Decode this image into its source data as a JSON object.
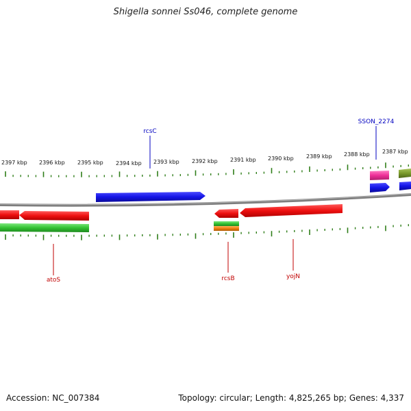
{
  "title": "Shigella sonnei Ss046, complete genome",
  "footer": {
    "accession": "Accession: NC_007384",
    "summary": "Topology: circular; Length: 4,825,265 bp; Genes: 4,337"
  },
  "colors": {
    "backbone": "#8a8a8a",
    "tick": "#2e7d18",
    "blue": "#1414e6",
    "red": "#ee1010",
    "green": "#33c233",
    "magenta": "#ee2f98",
    "olive": "#7a9a2a",
    "orange": "#f07f10",
    "label_red": "#c00000",
    "label_blue": "#0000c0"
  },
  "scale_labels": [
    {
      "label": "2397 kbp",
      "kbp": 2397
    },
    {
      "label": "2396 kbp",
      "kbp": 2396
    },
    {
      "label": "2395 kbp",
      "kbp": 2395
    },
    {
      "label": "2394 kbp",
      "kbp": 2394
    },
    {
      "label": "2393 kbp",
      "kbp": 2393
    },
    {
      "label": "2392 kbp",
      "kbp": 2392
    },
    {
      "label": "2391 kbp",
      "kbp": 2391
    },
    {
      "label": "2390 kbp",
      "kbp": 2390
    },
    {
      "label": "2389 kbp",
      "kbp": 2389
    },
    {
      "label": "2388 kbp",
      "kbp": 2388
    },
    {
      "label": "2387 kbp",
      "kbp": 2387
    }
  ],
  "gene_labels": [
    {
      "name": "rcsC",
      "color": "label_blue"
    },
    {
      "name": "SSON_2274",
      "color": "label_blue"
    },
    {
      "name": "atoS",
      "color": "label_red"
    },
    {
      "name": "rcsB",
      "color": "label_red"
    },
    {
      "name": "yojN",
      "color": "label_red"
    }
  ]
}
